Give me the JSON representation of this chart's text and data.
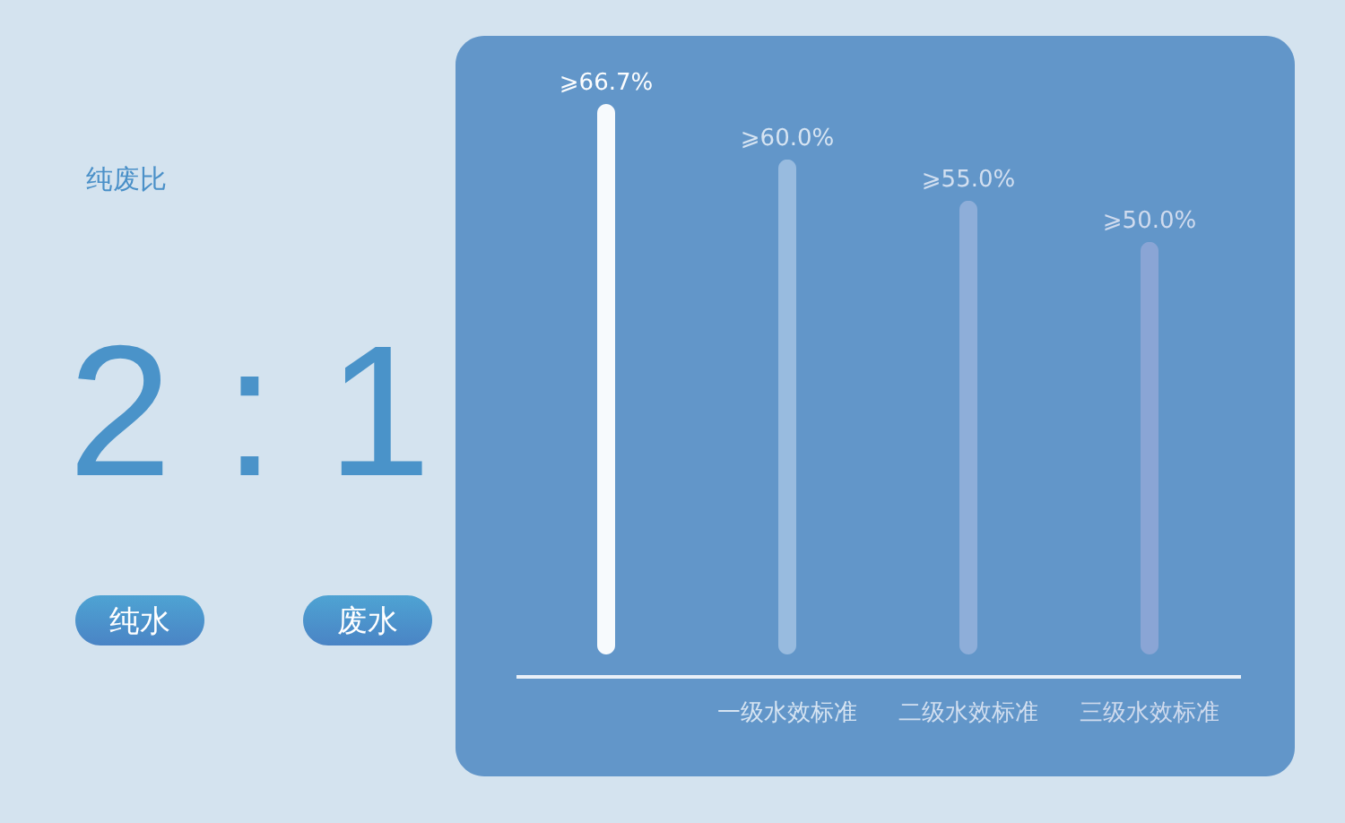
{
  "chart_data": [
    {
      "type": "other",
      "title": "纯废比",
      "annotations": [
        "2 : 1",
        "纯水",
        "废水"
      ]
    },
    {
      "type": "bar",
      "categories": [
        null,
        "一级水效标准",
        "二级水效标准",
        "三级水效标准"
      ],
      "values": [
        66.7,
        60.0,
        55.0,
        50.0
      ],
      "value_labels": [
        "⩾66.7%",
        "⩾60.0%",
        "⩾55.0%",
        "⩾50.0%"
      ],
      "colors": [
        "#f7fafd",
        "#98bbdf",
        "#8eaed9",
        "#8aa5d5"
      ],
      "grid": false,
      "legend": false
    }
  ]
}
